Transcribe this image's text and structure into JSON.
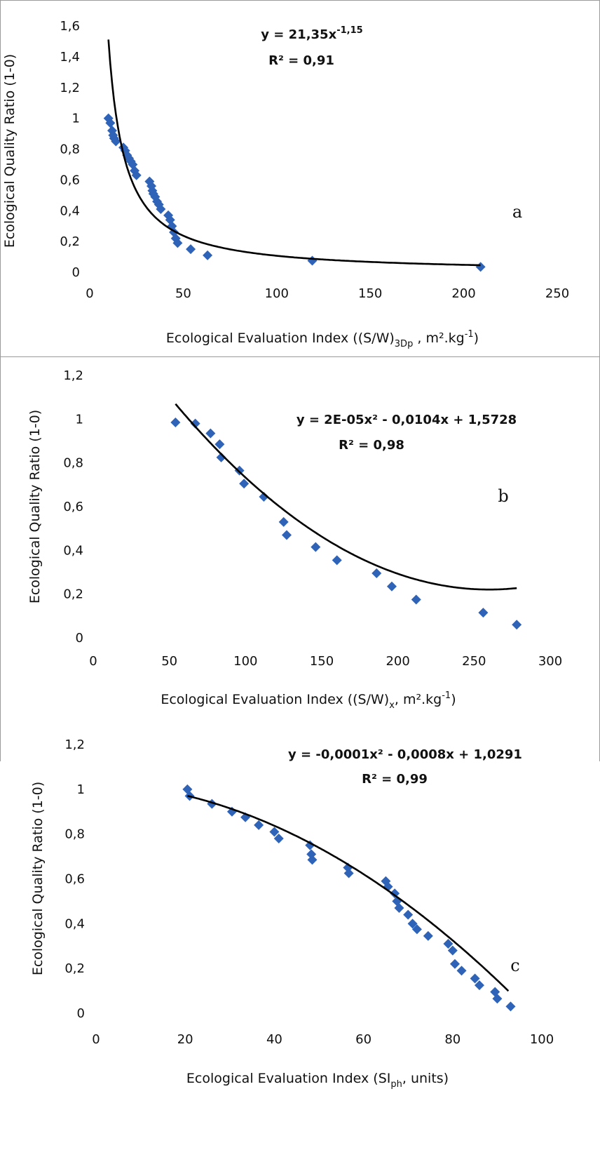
{
  "chart_data": [
    {
      "type": "scatter",
      "panel_label": "a",
      "xlabel": "Ecological Evaluation Index  ((S/W)",
      "xlabel_sub": "3Dp",
      "xlabel_tail": " , m².kg",
      "xlabel_sup": "-1",
      "xlabel_end": ")",
      "ylabel": "Ecological Quality Ratio (1-0)",
      "xlim": [
        0,
        250
      ],
      "ylim": [
        0,
        1.6
      ],
      "x_ticks": [
        "0",
        "50",
        "100",
        "150",
        "200",
        "250"
      ],
      "y_ticks": [
        "0",
        "0,2",
        "0,4",
        "0,6",
        "0,8",
        "1",
        "1,2",
        "1,4",
        "1,6"
      ],
      "equation": "y = 21,35x",
      "equation_sup": "-1,15",
      "r2": "R² = 0,91",
      "trend": "power",
      "trend_coef": [
        21.35,
        -1.15
      ],
      "trend_range": [
        10,
        209
      ],
      "marker_color": "#2e63b8",
      "series": [
        {
          "x": [
            10,
            11,
            12,
            12.5,
            13,
            14,
            18,
            19,
            20,
            21,
            22,
            23,
            24,
            25,
            32,
            33,
            33.5,
            34,
            35,
            36,
            37,
            38,
            42,
            43,
            44,
            45,
            46,
            47,
            54,
            63,
            119,
            209
          ],
          "y": [
            1.0,
            0.97,
            0.92,
            0.89,
            0.87,
            0.85,
            0.81,
            0.79,
            0.76,
            0.74,
            0.72,
            0.7,
            0.66,
            0.63,
            0.59,
            0.56,
            0.53,
            0.51,
            0.49,
            0.46,
            0.44,
            0.41,
            0.37,
            0.34,
            0.3,
            0.26,
            0.22,
            0.19,
            0.15,
            0.11,
            0.075,
            0.035
          ]
        }
      ]
    },
    {
      "type": "scatter",
      "panel_label": "b",
      "xlabel": "Ecological Evaluation Index ((S/W)",
      "xlabel_sub": "x",
      "xlabel_tail": ", m².kg",
      "xlabel_sup": "-1",
      "xlabel_end": ")",
      "ylabel": "Ecological Quality Ratio (1-0)",
      "xlim": [
        0,
        300
      ],
      "ylim": [
        0,
        1.2
      ],
      "x_ticks": [
        "0",
        "50",
        "100",
        "150",
        "200",
        "250",
        "300"
      ],
      "y_ticks": [
        "0",
        "0,2",
        "0,4",
        "0,6",
        "0,8",
        "1",
        "1,2"
      ],
      "equation": "y = 2E-05x² - 0,0104x + 1,5728",
      "equation_sup": "",
      "r2": "R² = 0,98",
      "trend": "poly2",
      "trend_coef": [
        2e-05,
        -0.0104,
        1.5728
      ],
      "trend_range": [
        54,
        278
      ],
      "marker_color": "#2e63b8",
      "series": [
        {
          "x": [
            54,
            67,
            77,
            83,
            84,
            96,
            99,
            112,
            125,
            127,
            146,
            160,
            186,
            196,
            212,
            256,
            278
          ],
          "y": [
            0.985,
            0.98,
            0.935,
            0.885,
            0.825,
            0.765,
            0.705,
            0.645,
            0.53,
            0.47,
            0.415,
            0.355,
            0.295,
            0.235,
            0.175,
            0.115,
            0.06
          ]
        }
      ]
    },
    {
      "type": "scatter",
      "panel_label": "c",
      "xlabel": "Ecological Evaluation Index  (SI",
      "xlabel_sub": "ph",
      "xlabel_tail": ", units)",
      "xlabel_sup": "",
      "xlabel_end": "",
      "ylabel": "Ecological Quality Ratio (1-0)",
      "xlim": [
        0,
        100
      ],
      "ylim": [
        0,
        1.2
      ],
      "x_ticks": [
        "0",
        "20",
        "40",
        "60",
        "80",
        "100"
      ],
      "y_ticks": [
        "0",
        "0,2",
        "0,4",
        "0,6",
        "0,8",
        "1",
        "1,2"
      ],
      "equation": "y = -0,0001x² - 0,0008x + 1,0291",
      "equation_sup": "",
      "r2": "R² = 0,99",
      "trend": "poly2",
      "trend_coef": [
        -0.0001,
        -0.0008,
        1.0291
      ],
      "trend_range": [
        20.5,
        92.5
      ],
      "marker_color": "#2e63b8",
      "series": [
        {
          "x": [
            20.5,
            21,
            26,
            30.5,
            33.5,
            36.5,
            40,
            41,
            48,
            48.3,
            48.5,
            56.5,
            56.7,
            65,
            65.5,
            67,
            67.5,
            68,
            70,
            71,
            72,
            74.5,
            79,
            80,
            80.5,
            82,
            85,
            86,
            89.5,
            90,
            93
          ],
          "y": [
            1.0,
            0.97,
            0.935,
            0.9,
            0.875,
            0.84,
            0.81,
            0.78,
            0.75,
            0.71,
            0.685,
            0.65,
            0.625,
            0.59,
            0.565,
            0.535,
            0.5,
            0.47,
            0.44,
            0.4,
            0.375,
            0.345,
            0.31,
            0.28,
            0.22,
            0.19,
            0.155,
            0.125,
            0.095,
            0.065,
            0.03
          ]
        }
      ]
    }
  ]
}
